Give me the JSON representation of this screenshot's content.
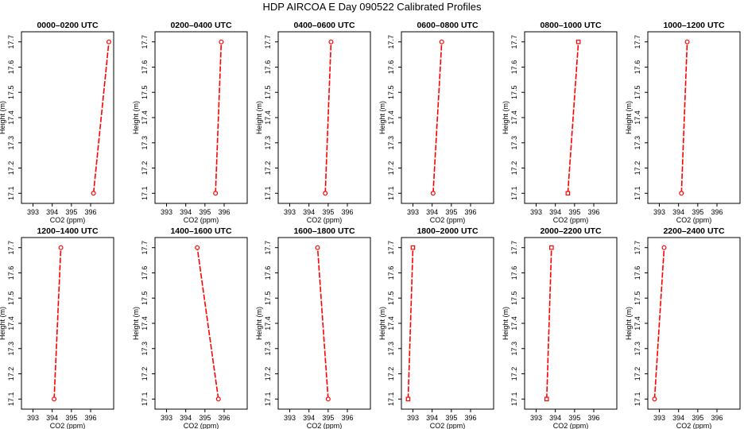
{
  "figure": {
    "title": "HDP AIRCOA E  Day 090522  Calibrated Profiles"
  },
  "chart_data": [
    {
      "type": "line",
      "title": "0000–0200 UTC",
      "xlabel": "CO2 (ppm)",
      "ylabel": "Height (m)",
      "xlim": [
        392.4,
        397.2
      ],
      "ylim": [
        17.06,
        17.74
      ],
      "xticks": [
        "393",
        "394",
        "395",
        "396"
      ],
      "yticks": [
        "17.1",
        "17.2",
        "17.3",
        "17.4",
        "17.5",
        "17.6",
        "17.7"
      ],
      "series": [
        {
          "x": [
            396.15,
            396.95
          ],
          "y": [
            17.1,
            17.7
          ],
          "color": "#ff0000",
          "marker": "circle"
        }
      ]
    },
    {
      "type": "line",
      "title": "0200–0400 UTC",
      "xlabel": "CO2 (ppm)",
      "ylabel": "Height (m)",
      "xlim": [
        392.4,
        397.2
      ],
      "ylim": [
        17.06,
        17.74
      ],
      "xticks": [
        "393",
        "394",
        "395",
        "396"
      ],
      "yticks": [
        "17.1",
        "17.2",
        "17.3",
        "17.4",
        "17.5",
        "17.6",
        "17.7"
      ],
      "series": [
        {
          "x": [
            395.55,
            395.85
          ],
          "y": [
            17.1,
            17.7
          ],
          "color": "#ff0000",
          "marker": "circle"
        }
      ]
    },
    {
      "type": "line",
      "title": "0400–0600 UTC",
      "xlabel": "CO2 (ppm)",
      "ylabel": "Height (m)",
      "xlim": [
        392.4,
        397.2
      ],
      "ylim": [
        17.06,
        17.74
      ],
      "xticks": [
        "393",
        "394",
        "395",
        "396"
      ],
      "yticks": [
        "17.1",
        "17.2",
        "17.3",
        "17.4",
        "17.5",
        "17.6",
        "17.7"
      ],
      "series": [
        {
          "x": [
            394.85,
            395.15
          ],
          "y": [
            17.1,
            17.7
          ],
          "color": "#ff0000",
          "marker": "circle"
        }
      ]
    },
    {
      "type": "line",
      "title": "0600–0800 UTC",
      "xlabel": "CO2 (ppm)",
      "ylabel": "Height (m)",
      "xlim": [
        392.4,
        397.2
      ],
      "ylim": [
        17.06,
        17.74
      ],
      "xticks": [
        "393",
        "394",
        "395",
        "396"
      ],
      "yticks": [
        "17.1",
        "17.2",
        "17.3",
        "17.4",
        "17.5",
        "17.6",
        "17.7"
      ],
      "series": [
        {
          "x": [
            394.05,
            394.5
          ],
          "y": [
            17.1,
            17.7
          ],
          "color": "#ff0000",
          "marker": "circle"
        }
      ]
    },
    {
      "type": "line",
      "title": "0800–1000 UTC",
      "xlabel": "CO2 (ppm)",
      "ylabel": "Height (m)",
      "xlim": [
        392.4,
        397.2
      ],
      "ylim": [
        17.06,
        17.74
      ],
      "xticks": [
        "393",
        "394",
        "395",
        "396"
      ],
      "yticks": [
        "17.1",
        "17.2",
        "17.3",
        "17.4",
        "17.5",
        "17.6",
        "17.7"
      ],
      "series": [
        {
          "x": [
            394.65,
            395.2
          ],
          "y": [
            17.1,
            17.7
          ],
          "color": "#ff0000",
          "marker": "square"
        }
      ]
    },
    {
      "type": "line",
      "title": "1000–1200 UTC",
      "xlabel": "CO2 (ppm)",
      "ylabel": "Height (m)",
      "xlim": [
        392.4,
        397.2
      ],
      "ylim": [
        17.06,
        17.74
      ],
      "xticks": [
        "393",
        "394",
        "395",
        "396"
      ],
      "yticks": [
        "17.1",
        "17.2",
        "17.3",
        "17.4",
        "17.5",
        "17.6",
        "17.7"
      ],
      "series": [
        {
          "x": [
            394.15,
            394.45
          ],
          "y": [
            17.1,
            17.7
          ],
          "color": "#ff0000",
          "marker": "circle"
        }
      ]
    },
    {
      "type": "line",
      "title": "1200–1400 UTC",
      "xlabel": "CO2 (ppm)",
      "ylabel": "Height (m)",
      "xlim": [
        392.4,
        397.2
      ],
      "ylim": [
        17.06,
        17.74
      ],
      "xticks": [
        "393",
        "394",
        "395",
        "396"
      ],
      "yticks": [
        "17.1",
        "17.2",
        "17.3",
        "17.4",
        "17.5",
        "17.6",
        "17.7"
      ],
      "series": [
        {
          "x": [
            394.1,
            394.45
          ],
          "y": [
            17.1,
            17.7
          ],
          "color": "#ff0000",
          "marker": "circle"
        }
      ]
    },
    {
      "type": "line",
      "title": "1400–1600 UTC",
      "xlabel": "CO2 (ppm)",
      "ylabel": "Height (m)",
      "xlim": [
        392.4,
        397.2
      ],
      "ylim": [
        17.06,
        17.74
      ],
      "xticks": [
        "393",
        "394",
        "395",
        "396"
      ],
      "yticks": [
        "17.1",
        "17.2",
        "17.3",
        "17.4",
        "17.5",
        "17.6",
        "17.7"
      ],
      "series": [
        {
          "x": [
            395.7,
            394.6
          ],
          "y": [
            17.1,
            17.7
          ],
          "color": "#ff0000",
          "marker": "circle"
        }
      ]
    },
    {
      "type": "line",
      "title": "1600–1800 UTC",
      "xlabel": "CO2 (ppm)",
      "ylabel": "Height (m)",
      "xlim": [
        392.4,
        397.2
      ],
      "ylim": [
        17.06,
        17.74
      ],
      "xticks": [
        "393",
        "394",
        "395",
        "396"
      ],
      "yticks": [
        "17.1",
        "17.2",
        "17.3",
        "17.4",
        "17.5",
        "17.6",
        "17.7"
      ],
      "series": [
        {
          "x": [
            395.0,
            394.45
          ],
          "y": [
            17.1,
            17.7
          ],
          "color": "#ff0000",
          "marker": "circle"
        }
      ]
    },
    {
      "type": "line",
      "title": "1800–2000 UTC",
      "xlabel": "CO2 (ppm)",
      "ylabel": "Height (m)",
      "xlim": [
        392.4,
        397.2
      ],
      "ylim": [
        17.06,
        17.74
      ],
      "xticks": [
        "393",
        "394",
        "395",
        "396"
      ],
      "yticks": [
        "17.1",
        "17.2",
        "17.3",
        "17.4",
        "17.5",
        "17.6",
        "17.7"
      ],
      "series": [
        {
          "x": [
            392.75,
            393.0
          ],
          "y": [
            17.1,
            17.7
          ],
          "color": "#ff0000",
          "marker": "square"
        }
      ]
    },
    {
      "type": "line",
      "title": "2000–2200 UTC",
      "xlabel": "CO2 (ppm)",
      "ylabel": "Height (m)",
      "xlim": [
        392.4,
        397.2
      ],
      "ylim": [
        17.06,
        17.74
      ],
      "xticks": [
        "393",
        "394",
        "395",
        "396"
      ],
      "yticks": [
        "17.1",
        "17.2",
        "17.3",
        "17.4",
        "17.5",
        "17.6",
        "17.7"
      ],
      "series": [
        {
          "x": [
            393.55,
            393.8
          ],
          "y": [
            17.1,
            17.7
          ],
          "color": "#ff0000",
          "marker": "square"
        }
      ]
    },
    {
      "type": "line",
      "title": "2200–2400 UTC",
      "xlabel": "CO2 (ppm)",
      "ylabel": "Height (m)",
      "xlim": [
        392.4,
        397.2
      ],
      "ylim": [
        17.06,
        17.74
      ],
      "xticks": [
        "393",
        "394",
        "395",
        "396"
      ],
      "yticks": [
        "17.1",
        "17.2",
        "17.3",
        "17.4",
        "17.5",
        "17.6",
        "17.7"
      ],
      "series": [
        {
          "x": [
            392.75,
            393.25
          ],
          "y": [
            17.1,
            17.7
          ],
          "color": "#ff0000",
          "marker": "circle"
        }
      ]
    }
  ]
}
